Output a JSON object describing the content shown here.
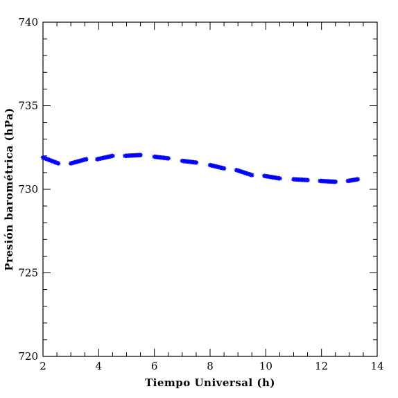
{
  "chart_data": {
    "type": "scatter",
    "title": "",
    "xlabel": "Tiempo Universal (h)",
    "ylabel": "Presión barométrica (hPa)",
    "xlim": [
      2,
      14
    ],
    "ylim": [
      720,
      740
    ],
    "x_ticks": [
      2,
      4,
      6,
      8,
      10,
      12,
      14
    ],
    "y_ticks": [
      720,
      725,
      730,
      735,
      740
    ],
    "x_tick_labels": [
      "2",
      "4",
      "6",
      "8",
      "10",
      "12",
      "14"
    ],
    "y_tick_labels": [
      "720",
      "725",
      "730",
      "735",
      "740"
    ],
    "grid": false,
    "marker": "star",
    "marker_color": "#0000ff",
    "segments": [
      {
        "x_start": 2.0,
        "x_end": 2.55,
        "y_start": 731.9,
        "y_end": 731.55
      },
      {
        "x_start": 3.0,
        "x_end": 3.55,
        "y_start": 731.55,
        "y_end": 731.8
      },
      {
        "x_start": 3.95,
        "x_end": 4.5,
        "y_start": 731.8,
        "y_end": 732.0
      },
      {
        "x_start": 4.95,
        "x_end": 5.5,
        "y_start": 732.0,
        "y_end": 732.05
      },
      {
        "x_start": 6.0,
        "x_end": 6.5,
        "y_start": 731.95,
        "y_end": 731.85
      },
      {
        "x_start": 7.0,
        "x_end": 7.5,
        "y_start": 731.7,
        "y_end": 731.6
      },
      {
        "x_start": 8.0,
        "x_end": 8.5,
        "y_start": 731.45,
        "y_end": 731.25
      },
      {
        "x_start": 8.95,
        "x_end": 9.5,
        "y_start": 731.15,
        "y_end": 730.85
      },
      {
        "x_start": 9.95,
        "x_end": 10.5,
        "y_start": 730.8,
        "y_end": 730.65
      },
      {
        "x_start": 11.0,
        "x_end": 11.5,
        "y_start": 730.6,
        "y_end": 730.55
      },
      {
        "x_start": 11.95,
        "x_end": 12.5,
        "y_start": 730.5,
        "y_end": 730.45
      },
      {
        "x_start": 12.95,
        "x_end": 13.3,
        "y_start": 730.5,
        "y_end": 730.6
      }
    ]
  }
}
